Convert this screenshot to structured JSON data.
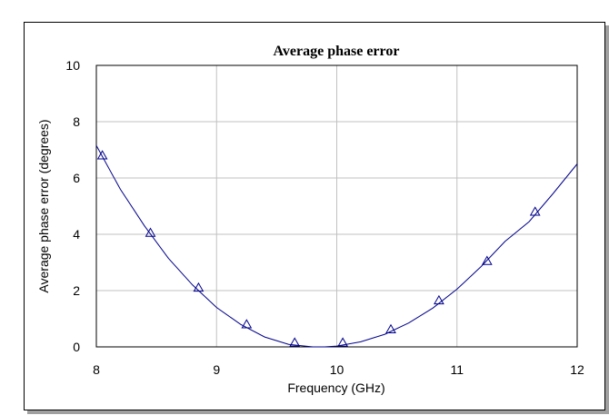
{
  "chart_data": {
    "type": "line",
    "title": "Average phase error",
    "xlabel": "Frequency (GHz)",
    "ylabel": "Average phase error (degrees)",
    "xlim": [
      8,
      12
    ],
    "ylim": [
      0,
      10
    ],
    "x_ticks": [
      "8",
      "9",
      "10",
      "11",
      "12"
    ],
    "y_ticks": [
      "0",
      "2",
      "4",
      "6",
      "8",
      "10"
    ],
    "grid": true,
    "legend": "none",
    "series": [
      {
        "style": "line",
        "color": "#00008B",
        "x": [
          8.0,
          8.2,
          8.4,
          8.6,
          8.8,
          9.0,
          9.2,
          9.4,
          9.6,
          9.8,
          9.9,
          10.0,
          10.2,
          10.4,
          10.6,
          10.8,
          11.0,
          11.2,
          11.4,
          11.6,
          11.8,
          12.0
        ],
        "y": [
          7.15,
          5.6,
          4.3,
          3.15,
          2.2,
          1.4,
          0.8,
          0.35,
          0.09,
          0.0,
          0.0,
          0.03,
          0.18,
          0.45,
          0.85,
          1.38,
          2.05,
          2.85,
          3.75,
          4.45,
          5.45,
          6.5
        ]
      },
      {
        "style": "markers",
        "marker": "triangle",
        "color": "#00008B",
        "x": [
          8.05,
          8.45,
          8.85,
          9.25,
          9.65,
          10.05,
          10.45,
          10.85,
          11.25,
          11.65
        ],
        "y": [
          6.8,
          4.05,
          2.1,
          0.8,
          0.15,
          0.15,
          0.62,
          1.65,
          3.05,
          4.8
        ]
      }
    ]
  }
}
